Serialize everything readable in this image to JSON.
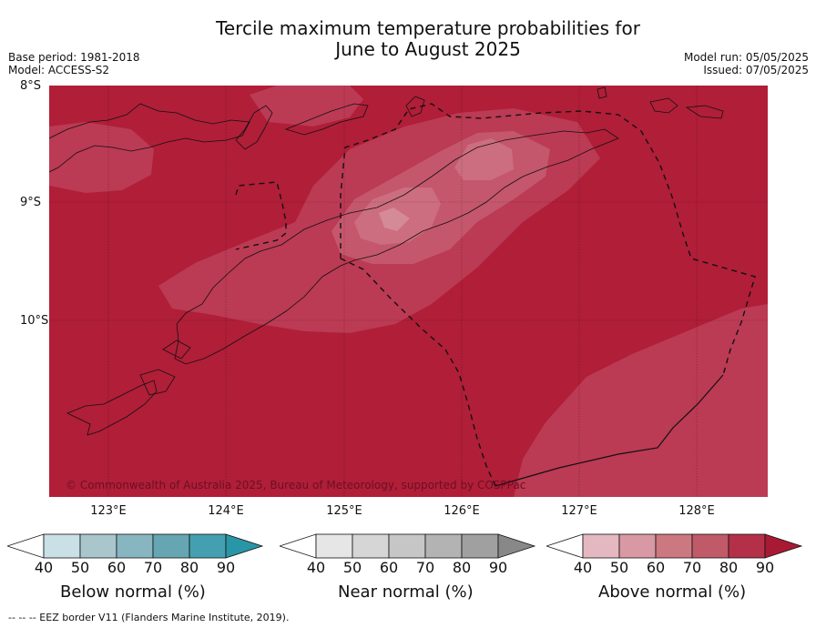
{
  "title_line1": "Tercile maximum temperature probabilities for",
  "title_line2": "June to August 2025",
  "meta_left": {
    "line1": "Base period: 1981-2018",
    "line2": "Model: ACCESS-S2"
  },
  "meta_right": {
    "line1": "Model run: 05/05/2025",
    "line2": "Issued: 07/05/2025"
  },
  "lat_labels": [
    "8°S",
    "9°S",
    "10°S"
  ],
  "lon_labels": [
    "123°E",
    "124°E",
    "125°E",
    "126°E",
    "127°E",
    "128°E"
  ],
  "copyright": "© Commonwealth of Australia 2025, Bureau of Meteorology, supported by COSPPac",
  "legends": {
    "below": {
      "title": "Below normal (%)",
      "ticks": [
        "40",
        "50",
        "60",
        "70",
        "80",
        "90"
      ],
      "colors": [
        "#c8e0e6",
        "#a8c6cc",
        "#88b6c0",
        "#66a6b2",
        "#44a0b0",
        "#2896a6"
      ]
    },
    "near": {
      "title": "Near normal (%)",
      "ticks": [
        "40",
        "50",
        "60",
        "70",
        "80",
        "90"
      ],
      "colors": [
        "#e6e6e6",
        "#d6d6d6",
        "#c6c6c6",
        "#b3b3b3",
        "#a0a0a0",
        "#888888"
      ]
    },
    "above": {
      "title": "Above normal (%)",
      "ticks": [
        "40",
        "50",
        "60",
        "70",
        "80",
        "90"
      ],
      "colors": [
        "#e4b8c0",
        "#d898a4",
        "#cc7880",
        "#c05a68",
        "#b43048",
        "#a81a34"
      ]
    }
  },
  "footer": "--  --  -- EEZ border V11 (Flanders Marine Institute, 2019).",
  "map_colors": {
    "base": "#b01e38",
    "c80": "#bb3a54",
    "c70": "#c4576b",
    "c60": "#cc6e7f",
    "c50": "#d48a97"
  }
}
